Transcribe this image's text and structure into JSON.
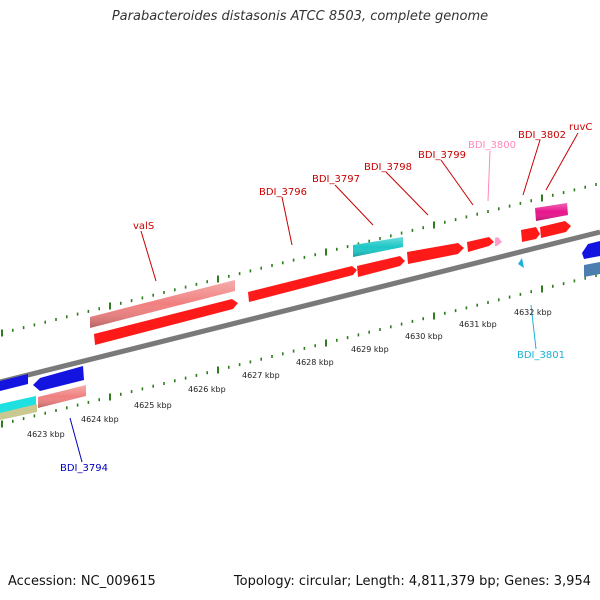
{
  "title": "Parabacteroides distasonis ATCC 8503, complete genome",
  "footer": {
    "accession": "Accession: NC_009615",
    "summary": "Topology: circular; Length: 4,811,379 bp; Genes: 3,954"
  },
  "colors": {
    "backbone": "#7a7a7a",
    "tick": "#2e7d1f",
    "forward_gene": "#ff1a1a",
    "forward_gene_light": "#f08080",
    "cyan_gene": "#1cc8c8",
    "magenta_gene": "#e8148c",
    "pink_gene": "#ff9ecb",
    "blue_gene": "#1414e0",
    "steel_gene": "#4a7fb0",
    "olive_gene": "#c8c890",
    "label_red": "#c80000",
    "label_pink": "#ff88bb",
    "label_cyan": "#1ab0d8",
    "label_blue": "#0000c0"
  },
  "kbp_ticks": [
    "4623 kbp",
    "4624 kbp",
    "4625 kbp",
    "4626 kbp",
    "4627 kbp",
    "4628 kbp",
    "4629 kbp",
    "4630 kbp",
    "4631 kbp",
    "4632 kbp"
  ],
  "gene_labels": [
    {
      "text": "valS",
      "color": "label_red"
    },
    {
      "text": "BDI_3796",
      "color": "label_red"
    },
    {
      "text": "BDI_3797",
      "color": "label_red"
    },
    {
      "text": "BDI_3798",
      "color": "label_red"
    },
    {
      "text": "BDI_3799",
      "color": "label_red"
    },
    {
      "text": "BDI_3800",
      "color": "label_pink"
    },
    {
      "text": "BDI_3802",
      "color": "label_red"
    },
    {
      "text": "ruvC",
      "color": "label_red"
    },
    {
      "text": "BDI_3801",
      "color": "label_cyan"
    },
    {
      "text": "BDI_3794",
      "color": "label_blue"
    }
  ]
}
